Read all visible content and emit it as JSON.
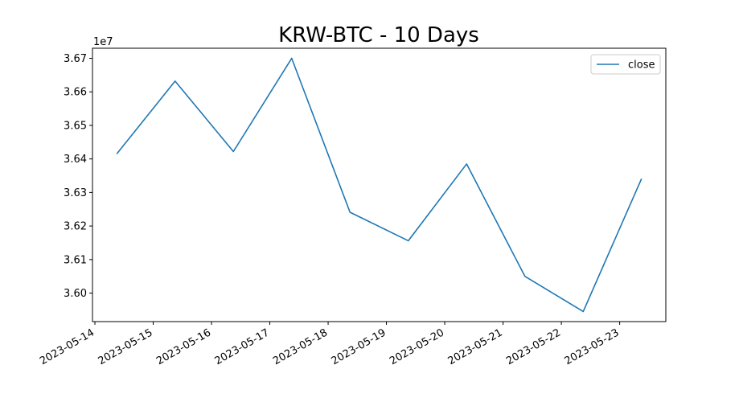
{
  "chart_data": {
    "type": "line",
    "title": "KRW-BTC - 10 Days",
    "xlabel": "",
    "ylabel": "",
    "y_offset_label": "1e7",
    "y_multiplier": 10000000,
    "x": [
      "2023-05-14 09:00",
      "2023-05-15 09:00",
      "2023-05-16 09:00",
      "2023-05-17 09:00",
      "2023-05-18 09:00",
      "2023-05-19 09:00",
      "2023-05-20 09:00",
      "2023-05-21 09:00",
      "2023-05-22 09:00",
      "2023-05-23 09:00"
    ],
    "series": [
      {
        "name": "close",
        "color": "#1f77b4",
        "values": [
          36415000,
          36632000,
          36422000,
          36700000,
          36241000,
          36156000,
          36385000,
          36050000,
          35945000,
          36341000
        ]
      }
    ],
    "x_ticks": [
      "2023-05-14",
      "2023-05-15",
      "2023-05-16",
      "2023-05-17",
      "2023-05-18",
      "2023-05-19",
      "2023-05-20",
      "2023-05-21",
      "2023-05-22",
      "2023-05-23"
    ],
    "y_ticks": [
      3.6,
      3.61,
      3.62,
      3.63,
      3.64,
      3.65,
      3.66,
      3.67
    ],
    "y_tick_labels": [
      "3.60",
      "3.61",
      "3.62",
      "3.63",
      "3.64",
      "3.65",
      "3.66",
      "3.67"
    ],
    "ylim": [
      35915000,
      36730000
    ],
    "xlim": [
      "2023-05-13 23:00",
      "2023-05-23 19:00"
    ],
    "grid": false,
    "legend_position": "top-right"
  }
}
